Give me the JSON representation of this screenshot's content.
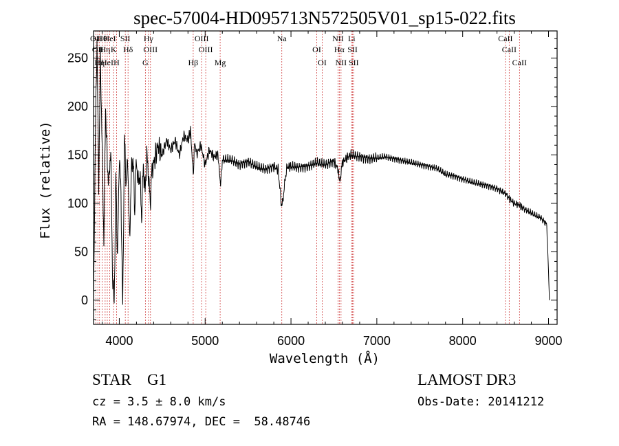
{
  "chart_data": {
    "type": "line",
    "title": "spec-57004-HD095713N572505V01_sp15-022.fits",
    "xlabel": "Wavelength (Å)",
    "ylabel": "Flux (relative)",
    "xlim": [
      3700,
      9100
    ],
    "ylim": [
      -25,
      278
    ],
    "x_ticks": [
      4000,
      5000,
      6000,
      7000,
      8000,
      9000
    ],
    "y_ticks": [
      0,
      50,
      100,
      150,
      200,
      250
    ],
    "series": [
      {
        "name": "flux",
        "x": [
          3700,
          3720,
          3740,
          3760,
          3780,
          3800,
          3820,
          3840,
          3860,
          3880,
          3900,
          3920,
          3940,
          3960,
          3980,
          4000,
          4020,
          4040,
          4060,
          4080,
          4100,
          4120,
          4140,
          4160,
          4180,
          4200,
          4220,
          4240,
          4260,
          4280,
          4300,
          4320,
          4340,
          4360,
          4380,
          4400,
          4450,
          4500,
          4550,
          4600,
          4650,
          4700,
          4750,
          4800,
          4830,
          4861,
          4880,
          4900,
          4950,
          5000,
          5050,
          5100,
          5150,
          5180,
          5200,
          5300,
          5400,
          5500,
          5600,
          5700,
          5800,
          5850,
          5893,
          5950,
          6000,
          6100,
          6200,
          6300,
          6400,
          6500,
          6550,
          6563,
          6600,
          6650,
          6700,
          6800,
          6900,
          7000,
          7100,
          7200,
          7300,
          7400,
          7500,
          7600,
          7700,
          7800,
          7900,
          8000,
          8100,
          8200,
          8300,
          8400,
          8498,
          8542,
          8600,
          8662,
          8700,
          8800,
          8880,
          8900,
          8980,
          9000,
          9010
        ],
        "values": [
          0,
          160,
          270,
          120,
          250,
          160,
          60,
          200,
          140,
          120,
          160,
          30,
          -5,
          130,
          40,
          150,
          110,
          -10,
          170,
          120,
          145,
          60,
          130,
          150,
          90,
          145,
          120,
          130,
          85,
          140,
          110,
          150,
          130,
          100,
          135,
          140,
          160,
          150,
          165,
          155,
          165,
          150,
          170,
          165,
          175,
          130,
          165,
          150,
          160,
          140,
          155,
          148,
          150,
          118,
          145,
          145,
          140,
          143,
          138,
          135,
          138,
          135,
          95,
          137,
          138,
          137,
          138,
          142,
          140,
          143,
          135,
          120,
          142,
          147,
          150,
          148,
          146,
          147,
          148,
          146,
          144,
          142,
          140,
          138,
          136,
          130,
          128,
          125,
          122,
          120,
          118,
          115,
          110,
          105,
          100,
          98,
          95,
          90,
          86,
          86,
          78,
          30,
          0
        ]
      }
    ],
    "line_markers": [
      {
        "wl": 3727,
        "label": "OII"
      },
      {
        "wl": 3750,
        "label": "OII"
      },
      {
        "wl": 3770,
        "label": "Hη"
      },
      {
        "wl": 3800,
        "label": "Hθ"
      },
      {
        "wl": 3835,
        "label": "Hη"
      },
      {
        "wl": 3860,
        "label": "HeI"
      },
      {
        "wl": 3889,
        "label": "HeI"
      },
      {
        "wl": 3934,
        "label": "K"
      },
      {
        "wl": 3968,
        "label": "H"
      },
      {
        "wl": 4070,
        "label": "SII"
      },
      {
        "wl": 4102,
        "label": "Hδ"
      },
      {
        "wl": 4304,
        "label": "G"
      },
      {
        "wl": 4340,
        "label": "Hγ"
      },
      {
        "wl": 4363,
        "label": "OIII"
      },
      {
        "wl": 4861,
        "label": "Hβ"
      },
      {
        "wl": 4959,
        "label": "OIII"
      },
      {
        "wl": 5007,
        "label": "OIII"
      },
      {
        "wl": 5175,
        "label": "Mg"
      },
      {
        "wl": 5893,
        "label": "Na"
      },
      {
        "wl": 6300,
        "label": "OI"
      },
      {
        "wl": 6364,
        "label": "OI"
      },
      {
        "wl": 6548,
        "label": "NII"
      },
      {
        "wl": 6563,
        "label": "Hα"
      },
      {
        "wl": 6583,
        "label": "NII"
      },
      {
        "wl": 6707,
        "label": "Li"
      },
      {
        "wl": 6717,
        "label": "SII"
      },
      {
        "wl": 6731,
        "label": "SII"
      },
      {
        "wl": 8498,
        "label": "CaII"
      },
      {
        "wl": 8542,
        "label": "CaII"
      },
      {
        "wl": 8662,
        "label": "CaII"
      }
    ]
  },
  "info": {
    "class_line": "STAR    G1",
    "cz_line": "cz = 3.5 ± 8.0 km/s",
    "radec_line": "RA = 148.67974, DEC =  58.48746",
    "survey": "LAMOST DR3",
    "obs_date": "Obs-Date: 20141212"
  },
  "colors": {
    "marker": "#d04040",
    "spectrum": "#000000",
    "axis": "#000000"
  }
}
